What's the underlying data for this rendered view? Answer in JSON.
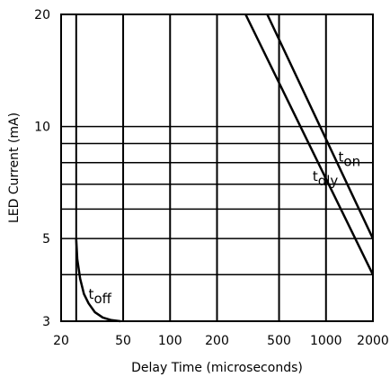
{
  "chart_data": {
    "type": "line",
    "title": "",
    "xlabel": "Delay Time (microseconds)",
    "ylabel": "LED Current (mA)",
    "xscale": "log",
    "yscale": "log",
    "xlim": [
      20,
      2000
    ],
    "ylim": [
      3,
      20
    ],
    "grid": true,
    "x_ticks": [
      {
        "value": 20,
        "label": "20"
      },
      {
        "value": 50,
        "label": "50"
      },
      {
        "value": 100,
        "label": "100"
      },
      {
        "value": 200,
        "label": "200"
      },
      {
        "value": 500,
        "label": "500"
      },
      {
        "value": 1000,
        "label": "1000"
      },
      {
        "value": 2000,
        "label": "2000"
      }
    ],
    "x_grid": [
      20,
      25,
      50,
      100,
      200,
      500,
      1000,
      2000
    ],
    "y_ticks": [
      {
        "value": 3,
        "label": "3"
      },
      {
        "value": 5,
        "label": "5"
      },
      {
        "value": 10,
        "label": "10"
      },
      {
        "value": 20,
        "label": "20"
      }
    ],
    "y_grid": [
      3,
      4,
      5,
      6,
      7,
      8,
      9,
      10,
      20
    ],
    "series": [
      {
        "name": "off",
        "label_prefix": "t",
        "label_sub": "off",
        "label_at": [
          30,
          3.45
        ],
        "x": [
          25,
          25.4,
          26.5,
          28,
          30,
          33,
          37,
          42,
          48
        ],
        "y": [
          5.0,
          4.4,
          3.9,
          3.55,
          3.35,
          3.17,
          3.07,
          3.02,
          3.0
        ]
      },
      {
        "name": "dly",
        "label_prefix": "t",
        "label_sub": "dly",
        "label_at": [
          820,
          7.15
        ],
        "x": [
          305,
          2000
        ],
        "y": [
          20,
          4.0
        ]
      },
      {
        "name": "on",
        "label_prefix": "t",
        "label_sub": "on",
        "label_at": [
          1200,
          8.05
        ],
        "x": [
          420,
          2000
        ],
        "y": [
          20,
          5.0
        ]
      }
    ]
  }
}
